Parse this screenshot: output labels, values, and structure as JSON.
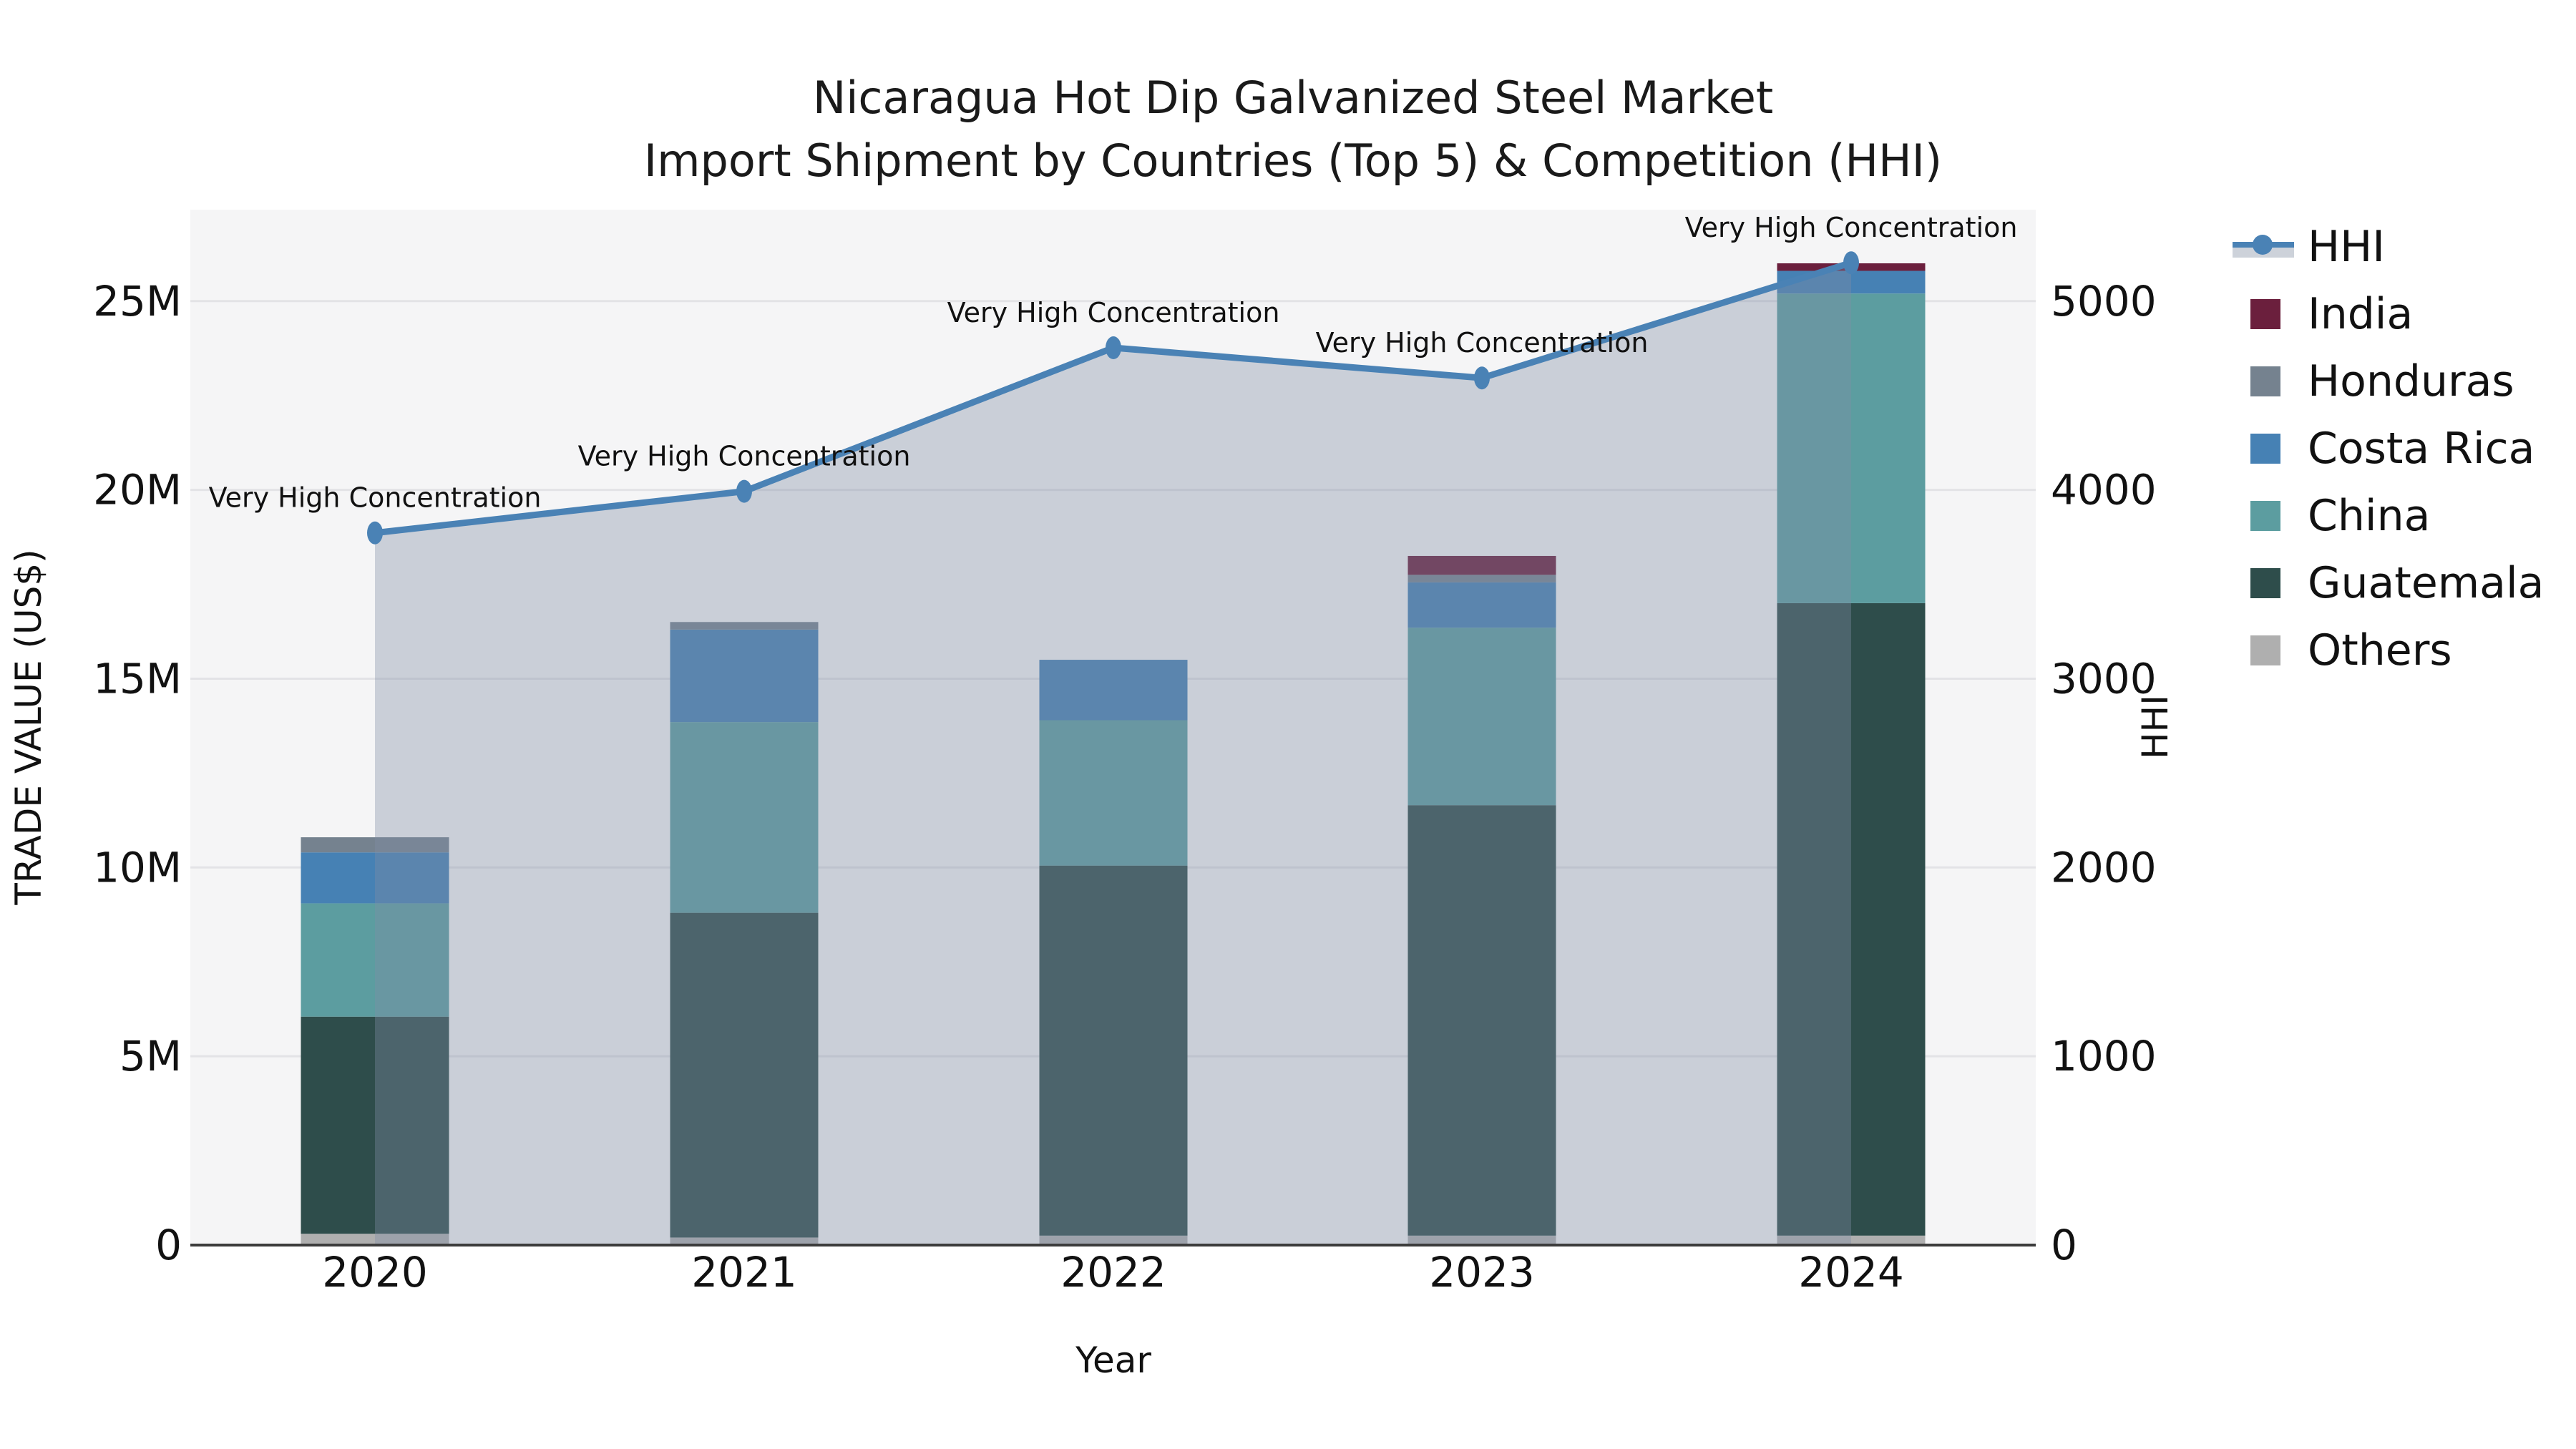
{
  "title": {
    "line1": "Nicaragua Hot Dip Galvanized Steel Market",
    "line2": "Import Shipment by Countries (Top 5) & Competition (HHI)"
  },
  "axes": {
    "x_label": "Year",
    "y_left_label": "TRADE VALUE (US$)",
    "y_right_label": "HHI",
    "y_left_ticks": [
      "0",
      "5M",
      "10M",
      "15M",
      "20M",
      "25M"
    ],
    "y_right_ticks": [
      "0",
      "1000",
      "2000",
      "3000",
      "4000",
      "5000"
    ]
  },
  "annotation_text": "Very High Concentration",
  "colors": {
    "hhi_line": "#4A82B5",
    "area_fill": "rgba(128,140,165,0.37)",
    "area_legend_band": "#CDD2DA",
    "india": "#6B1F3D",
    "honduras": "#75828F",
    "costa_rica": "#4681B4",
    "china": "#5C9DA0",
    "guatemala": "#2E4D4B",
    "others": "#AFAFAF",
    "plot_bg": "#F5F5F6",
    "gridline": "#E3E3E6",
    "axis_line": "#3C3C3C"
  },
  "legend": {
    "items": [
      {
        "label": "HHI",
        "type": "line",
        "color": "#4A82B5"
      },
      {
        "label": "India",
        "type": "swatch",
        "color": "#6B1F3D"
      },
      {
        "label": "Honduras",
        "type": "swatch",
        "color": "#75828F"
      },
      {
        "label": "Costa Rica",
        "type": "swatch",
        "color": "#4681B4"
      },
      {
        "label": "China",
        "type": "swatch",
        "color": "#5C9DA0"
      },
      {
        "label": "Guatemala",
        "type": "swatch",
        "color": "#2E4D4B"
      },
      {
        "label": "Others",
        "type": "swatch",
        "color": "#AFAFAF"
      }
    ]
  },
  "chart_data": [
    {
      "type": "bar",
      "stacked": true,
      "title": "Import shipment trade value by country (stacked, US$ millions)",
      "categories": [
        "2020",
        "2021",
        "2022",
        "2023",
        "2024"
      ],
      "unit": "M US$",
      "axis": "left",
      "ylabel": "TRADE VALUE (US$)",
      "ylim": [
        0,
        27.4
      ],
      "grid": true,
      "series_bottom_to_top": [
        {
          "name": "Others",
          "color": "#AFAFAF",
          "values": [
            0.3,
            0.2,
            0.25,
            0.25,
            0.25
          ]
        },
        {
          "name": "Guatemala",
          "color": "#2E4D4B",
          "values": [
            5.75,
            8.6,
            9.8,
            11.4,
            16.75
          ]
        },
        {
          "name": "China",
          "color": "#5C9DA0",
          "values": [
            3.0,
            5.05,
            3.85,
            4.7,
            8.2
          ]
        },
        {
          "name": "Costa Rica",
          "color": "#4681B4",
          "values": [
            1.35,
            2.45,
            1.6,
            1.2,
            0.6
          ]
        },
        {
          "name": "Honduras",
          "color": "#75828F",
          "values": [
            0.4,
            0.2,
            0.0,
            0.2,
            0.0
          ]
        },
        {
          "name": "India",
          "color": "#6B1F3D",
          "values": [
            0.0,
            0.0,
            0.0,
            0.5,
            0.2
          ]
        }
      ],
      "totals": [
        10.8,
        16.5,
        15.5,
        18.25,
        26.0
      ]
    },
    {
      "type": "line",
      "name": "HHI",
      "title": "Market concentration (HHI), line with area fill",
      "x": [
        "2020",
        "2021",
        "2022",
        "2023",
        "2024"
      ],
      "values": [
        3770,
        3990,
        4750,
        4590,
        5200
      ],
      "axis": "right",
      "ylabel": "HHI",
      "ylim": [
        0,
        5480
      ],
      "legend_position": "right",
      "annotations": [
        "Very High Concentration",
        "Very High Concentration",
        "Very High Concentration",
        "Very High Concentration",
        "Very High Concentration"
      ]
    }
  ]
}
